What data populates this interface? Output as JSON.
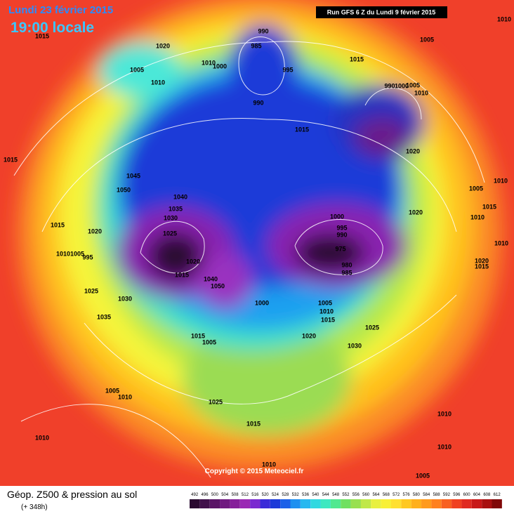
{
  "header": {
    "date": "Lundi 23 février 2015",
    "time": "19:00 locale",
    "run": "Run GFS 6 Z du Lundi 9 février 2015"
  },
  "copyright": "Copyright © 2015 Meteociel.fr",
  "footer": {
    "title": "Géop. Z500 & pression au sol",
    "lead": "(+ 348h)"
  },
  "legend": [
    492,
    496,
    500,
    504,
    508,
    512,
    516,
    520,
    524,
    528,
    532,
    536,
    540,
    544,
    548,
    552,
    556,
    560,
    564,
    568,
    572,
    576,
    580,
    584,
    588,
    592,
    596,
    600,
    604,
    608,
    612
  ],
  "pressure_labels": [
    1015,
    990,
    985,
    1020,
    1005,
    1010,
    1010,
    1000,
    995,
    990,
    1015,
    1005,
    1010,
    990,
    1000,
    1005,
    1010,
    1015,
    1020,
    1015,
    1045,
    1050,
    1040,
    1035,
    1030,
    1025,
    1015,
    1020,
    1010,
    1005,
    995,
    1020,
    1015,
    1050,
    1040,
    1000,
    1000,
    995,
    990,
    975,
    980,
    985,
    1005,
    1010,
    1015,
    1025,
    1020,
    1030,
    1025,
    1030,
    1035,
    1015,
    1005,
    1020,
    1005,
    1010,
    1015,
    1010,
    1010,
    1020,
    1015,
    1005,
    1010,
    1025,
    1015,
    1010,
    1010,
    1010,
    1005,
    1010
  ]
}
